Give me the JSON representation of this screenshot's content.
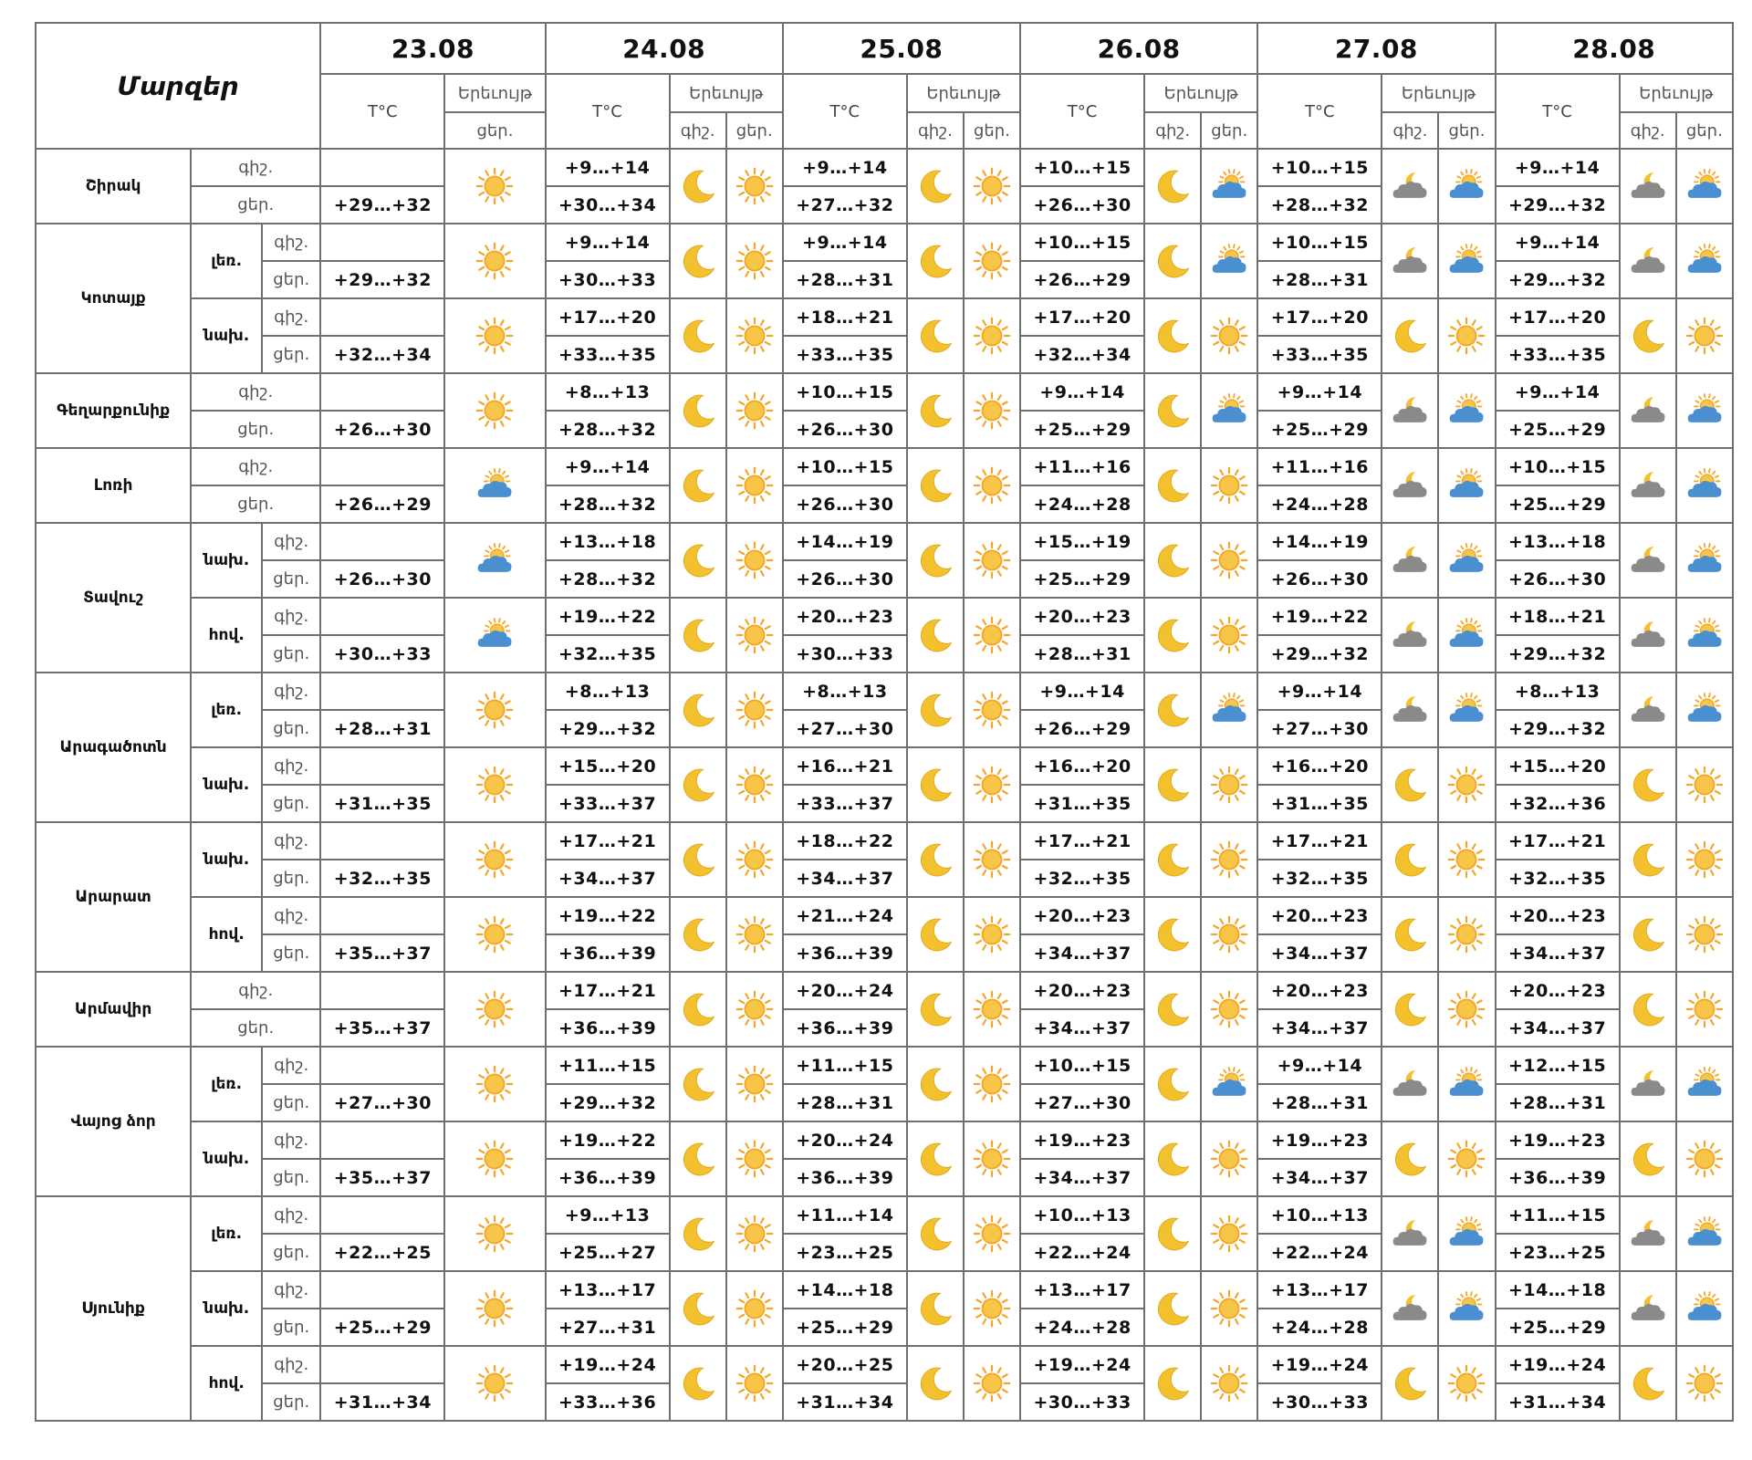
{
  "header": {
    "regions_title": "Մարզեր",
    "temp_label": "T°C",
    "phenomenon_label": "Երեւույթ",
    "night_label": "գիշ.",
    "day_label": "ցեր."
  },
  "dates": [
    "23.08",
    "24.08",
    "25.08",
    "26.08",
    "27.08",
    "28.08"
  ],
  "regions": [
    {
      "name": "Շիրակ",
      "zones": [
        {
          "zone": "",
          "night": [
            "",
            "+9…+14",
            "+9…+14",
            "+10…+15",
            "+10…+15",
            "+9…+14"
          ],
          "day": [
            "+29…+32",
            "+30…+34",
            "+27…+32",
            "+26…+30",
            "+28…+32",
            "+29…+32"
          ],
          "icons_night": [
            "",
            "moon-icon",
            "moon-icon",
            "moon-icon",
            "cloudy-moon-icon",
            "cloudy-moon-icon"
          ],
          "icons_day": [
            "sun-icon",
            "sun-icon",
            "sun-icon",
            "partly-cloudy-icon",
            "partly-cloudy-icon",
            "partly-cloudy-icon"
          ]
        }
      ]
    },
    {
      "name": "Կոտայք",
      "zones": [
        {
          "zone": "լեռ.",
          "night": [
            "",
            "+9…+14",
            "+9…+14",
            "+10…+15",
            "+10…+15",
            "+9…+14"
          ],
          "day": [
            "+29…+32",
            "+30…+33",
            "+28…+31",
            "+26…+29",
            "+28…+31",
            "+29…+32"
          ],
          "icons_night": [
            "",
            "moon-icon",
            "moon-icon",
            "moon-icon",
            "cloudy-moon-icon",
            "cloudy-moon-icon"
          ],
          "icons_day": [
            "sun-icon",
            "sun-icon",
            "sun-icon",
            "partly-cloudy-icon",
            "partly-cloudy-icon",
            "partly-cloudy-icon"
          ]
        },
        {
          "zone": "նախ.",
          "night": [
            "",
            "+17…+20",
            "+18…+21",
            "+17…+20",
            "+17…+20",
            "+17…+20"
          ],
          "day": [
            "+32…+34",
            "+33…+35",
            "+33…+35",
            "+32…+34",
            "+33…+35",
            "+33…+35"
          ],
          "icons_night": [
            "",
            "moon-icon",
            "moon-icon",
            "moon-icon",
            "moon-icon",
            "moon-icon"
          ],
          "icons_day": [
            "sun-icon",
            "sun-icon",
            "sun-icon",
            "sun-icon",
            "sun-icon",
            "sun-icon"
          ]
        }
      ]
    },
    {
      "name": "Գեղարքունիք",
      "zones": [
        {
          "zone": "",
          "night": [
            "",
            "+8…+13",
            "+10…+15",
            "+9…+14",
            "+9…+14",
            "+9…+14"
          ],
          "day": [
            "+26…+30",
            "+28…+32",
            "+26…+30",
            "+25…+29",
            "+25…+29",
            "+25…+29"
          ],
          "icons_night": [
            "",
            "moon-icon",
            "moon-icon",
            "moon-icon",
            "cloudy-moon-icon",
            "cloudy-moon-icon"
          ],
          "icons_day": [
            "sun-icon",
            "sun-icon",
            "sun-icon",
            "partly-cloudy-icon",
            "partly-cloudy-icon",
            "partly-cloudy-icon"
          ]
        }
      ]
    },
    {
      "name": "Լոռի",
      "zones": [
        {
          "zone": "",
          "night": [
            "",
            "+9…+14",
            "+10…+15",
            "+11…+16",
            "+11…+16",
            "+10…+15"
          ],
          "day": [
            "+26…+29",
            "+28…+32",
            "+26…+30",
            "+24…+28",
            "+24…+28",
            "+25…+29"
          ],
          "icons_night": [
            "",
            "moon-icon",
            "moon-icon",
            "moon-icon",
            "cloudy-moon-icon",
            "cloudy-moon-icon"
          ],
          "icons_day": [
            "partly-cloudy-icon",
            "sun-icon",
            "sun-icon",
            "sun-icon",
            "partly-cloudy-icon",
            "partly-cloudy-icon"
          ]
        }
      ]
    },
    {
      "name": "Տավուշ",
      "zones": [
        {
          "zone": "նախ.",
          "night": [
            "",
            "+13…+18",
            "+14…+19",
            "+15…+19",
            "+14…+19",
            "+13…+18"
          ],
          "day": [
            "+26…+30",
            "+28…+32",
            "+26…+30",
            "+25…+29",
            "+26…+30",
            "+26…+30"
          ],
          "icons_night": [
            "",
            "moon-icon",
            "moon-icon",
            "moon-icon",
            "cloudy-moon-icon",
            "cloudy-moon-icon"
          ],
          "icons_day": [
            "partly-cloudy-icon",
            "sun-icon",
            "sun-icon",
            "sun-icon",
            "partly-cloudy-icon",
            "partly-cloudy-icon"
          ]
        },
        {
          "zone": "հով.",
          "night": [
            "",
            "+19…+22",
            "+20…+23",
            "+20…+23",
            "+19…+22",
            "+18…+21"
          ],
          "day": [
            "+30…+33",
            "+32…+35",
            "+30…+33",
            "+28…+31",
            "+29…+32",
            "+29…+32"
          ],
          "icons_night": [
            "",
            "moon-icon",
            "moon-icon",
            "moon-icon",
            "cloudy-moon-icon",
            "cloudy-moon-icon"
          ],
          "icons_day": [
            "partly-cloudy-icon",
            "sun-icon",
            "sun-icon",
            "sun-icon",
            "partly-cloudy-icon",
            "partly-cloudy-icon"
          ]
        }
      ]
    },
    {
      "name": "Արագածոտն",
      "zones": [
        {
          "zone": "լեռ.",
          "night": [
            "",
            "+8…+13",
            "+8…+13",
            "+9…+14",
            "+9…+14",
            "+8…+13"
          ],
          "day": [
            "+28…+31",
            "+29…+32",
            "+27…+30",
            "+26…+29",
            "+27…+30",
            "+29…+32"
          ],
          "icons_night": [
            "",
            "moon-icon",
            "moon-icon",
            "moon-icon",
            "cloudy-moon-icon",
            "cloudy-moon-icon"
          ],
          "icons_day": [
            "sun-icon",
            "sun-icon",
            "sun-icon",
            "partly-cloudy-icon",
            "partly-cloudy-icon",
            "partly-cloudy-icon"
          ]
        },
        {
          "zone": "նախ.",
          "night": [
            "",
            "+15…+20",
            "+16…+21",
            "+16…+20",
            "+16…+20",
            "+15…+20"
          ],
          "day": [
            "+31…+35",
            "+33…+37",
            "+33…+37",
            "+31…+35",
            "+31…+35",
            "+32…+36"
          ],
          "icons_night": [
            "",
            "moon-icon",
            "moon-icon",
            "moon-icon",
            "moon-icon",
            "moon-icon"
          ],
          "icons_day": [
            "sun-icon",
            "sun-icon",
            "sun-icon",
            "sun-icon",
            "sun-icon",
            "sun-icon"
          ]
        }
      ]
    },
    {
      "name": "Արարատ",
      "zones": [
        {
          "zone": "նախ.",
          "night": [
            "",
            "+17…+21",
            "+18…+22",
            "+17…+21",
            "+17…+21",
            "+17…+21"
          ],
          "day": [
            "+32…+35",
            "+34…+37",
            "+34…+37",
            "+32…+35",
            "+32…+35",
            "+32…+35"
          ],
          "icons_night": [
            "",
            "moon-icon",
            "moon-icon",
            "moon-icon",
            "moon-icon",
            "moon-icon"
          ],
          "icons_day": [
            "sun-icon",
            "sun-icon",
            "sun-icon",
            "sun-icon",
            "sun-icon",
            "sun-icon"
          ]
        },
        {
          "zone": "հով.",
          "night": [
            "",
            "+19…+22",
            "+21…+24",
            "+20…+23",
            "+20…+23",
            "+20…+23"
          ],
          "day": [
            "+35…+37",
            "+36…+39",
            "+36…+39",
            "+34…+37",
            "+34…+37",
            "+34…+37"
          ],
          "icons_night": [
            "",
            "moon-icon",
            "moon-icon",
            "moon-icon",
            "moon-icon",
            "moon-icon"
          ],
          "icons_day": [
            "sun-icon",
            "sun-icon",
            "sun-icon",
            "sun-icon",
            "sun-icon",
            "sun-icon"
          ]
        }
      ]
    },
    {
      "name": "Արմավիր",
      "zones": [
        {
          "zone": "",
          "night": [
            "",
            "+17…+21",
            "+20…+24",
            "+20…+23",
            "+20…+23",
            "+20…+23"
          ],
          "day": [
            "+35…+37",
            "+36…+39",
            "+36…+39",
            "+34…+37",
            "+34…+37",
            "+34…+37"
          ],
          "icons_night": [
            "",
            "moon-icon",
            "moon-icon",
            "moon-icon",
            "moon-icon",
            "moon-icon"
          ],
          "icons_day": [
            "sun-icon",
            "sun-icon",
            "sun-icon",
            "sun-icon",
            "sun-icon",
            "sun-icon"
          ]
        }
      ]
    },
    {
      "name": "Վայոց ձոր",
      "zones": [
        {
          "zone": "լեռ.",
          "night": [
            "",
            "+11…+15",
            "+11…+15",
            "+10…+15",
            "+9…+14",
            "+12…+15"
          ],
          "day": [
            "+27…+30",
            "+29…+32",
            "+28…+31",
            "+27…+30",
            "+28…+31",
            "+28…+31"
          ],
          "icons_night": [
            "",
            "moon-icon",
            "moon-icon",
            "moon-icon",
            "cloudy-moon-icon",
            "cloudy-moon-icon"
          ],
          "icons_day": [
            "sun-icon",
            "sun-icon",
            "sun-icon",
            "partly-cloudy-icon",
            "partly-cloudy-icon",
            "partly-cloudy-icon"
          ]
        },
        {
          "zone": "նախ.",
          "night": [
            "",
            "+19…+22",
            "+20…+24",
            "+19…+23",
            "+19…+23",
            "+19…+23"
          ],
          "day": [
            "+35…+37",
            "+36…+39",
            "+36…+39",
            "+34…+37",
            "+34…+37",
            "+36…+39"
          ],
          "icons_night": [
            "",
            "moon-icon",
            "moon-icon",
            "moon-icon",
            "moon-icon",
            "moon-icon"
          ],
          "icons_day": [
            "sun-icon",
            "sun-icon",
            "sun-icon",
            "sun-icon",
            "sun-icon",
            "sun-icon"
          ]
        }
      ]
    },
    {
      "name": "Սյունիք",
      "zones": [
        {
          "zone": "լեռ.",
          "night": [
            "",
            "+9…+13",
            "+11…+14",
            "+10…+13",
            "+10…+13",
            "+11…+15"
          ],
          "day": [
            "+22…+25",
            "+25…+27",
            "+23…+25",
            "+22…+24",
            "+22…+24",
            "+23…+25"
          ],
          "icons_night": [
            "",
            "moon-icon",
            "moon-icon",
            "moon-icon",
            "cloudy-moon-icon",
            "cloudy-moon-icon"
          ],
          "icons_day": [
            "sun-icon",
            "sun-icon",
            "sun-icon",
            "sun-icon",
            "partly-cloudy-icon",
            "partly-cloudy-icon"
          ]
        },
        {
          "zone": "նախ.",
          "night": [
            "",
            "+13…+17",
            "+14…+18",
            "+13…+17",
            "+13…+17",
            "+14…+18"
          ],
          "day": [
            "+25…+29",
            "+27…+31",
            "+25…+29",
            "+24…+28",
            "+24…+28",
            "+25…+29"
          ],
          "icons_night": [
            "",
            "moon-icon",
            "moon-icon",
            "moon-icon",
            "cloudy-moon-icon",
            "cloudy-moon-icon"
          ],
          "icons_day": [
            "sun-icon",
            "sun-icon",
            "sun-icon",
            "sun-icon",
            "partly-cloudy-icon",
            "partly-cloudy-icon"
          ]
        },
        {
          "zone": "հով.",
          "night": [
            "",
            "+19…+24",
            "+20…+25",
            "+19…+24",
            "+19…+24",
            "+19…+24"
          ],
          "day": [
            "+31…+34",
            "+33…+36",
            "+31…+34",
            "+30…+33",
            "+30…+33",
            "+31…+34"
          ],
          "icons_night": [
            "",
            "moon-icon",
            "moon-icon",
            "moon-icon",
            "moon-icon",
            "moon-icon"
          ],
          "icons_day": [
            "sun-icon",
            "sun-icon",
            "sun-icon",
            "sun-icon",
            "sun-icon",
            "sun-icon"
          ]
        }
      ]
    }
  ],
  "colors": {
    "border": "#6f6f6f",
    "sun": "#f4a628",
    "sun_core": "#f7c548",
    "moon": "#f3c12d",
    "cloud_blue": "#4a8fd0",
    "cloud_grey": "#8a8a8a"
  }
}
